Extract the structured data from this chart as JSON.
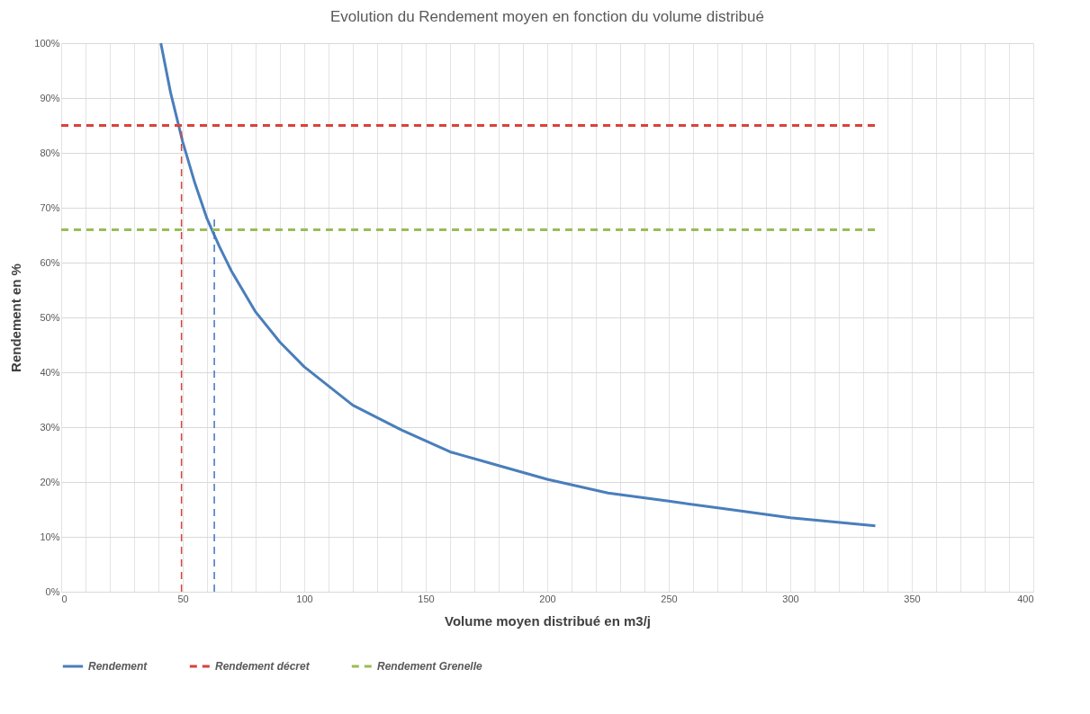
{
  "chart_data": {
    "type": "line",
    "title": "Evolution du Rendement moyen en fonction du volume distribué",
    "xlabel": "Volume moyen distribué en m3/j",
    "ylabel": "Rendement en %",
    "xlim": [
      0,
      400
    ],
    "ylim": [
      0,
      100
    ],
    "xticks": [
      0,
      {
        "value": 10,
        "label": null
      },
      {
        "value": 20,
        "label": null
      },
      {
        "value": 30,
        "label": null
      },
      {
        "value": 40,
        "label": null
      },
      50,
      {
        "value": 60,
        "label": null
      },
      {
        "value": 70,
        "label": null
      },
      {
        "value": 80,
        "label": null
      },
      {
        "value": 90,
        "label": null
      },
      100,
      {
        "value": 110,
        "label": null
      },
      {
        "value": 120,
        "label": null
      },
      {
        "value": 130,
        "label": null
      },
      {
        "value": 140,
        "label": null
      },
      150,
      {
        "value": 160,
        "label": null
      },
      {
        "value": 170,
        "label": null
      },
      {
        "value": 180,
        "label": null
      },
      {
        "value": 190,
        "label": null
      },
      200,
      {
        "value": 210,
        "label": null
      },
      {
        "value": 220,
        "label": null
      },
      {
        "value": 230,
        "label": null
      },
      {
        "value": 240,
        "label": null
      },
      250,
      {
        "value": 260,
        "label": null
      },
      {
        "value": 270,
        "label": null
      },
      {
        "value": 280,
        "label": null
      },
      {
        "value": 290,
        "label": null
      },
      300,
      {
        "value": 310,
        "label": null
      },
      {
        "value": 320,
        "label": null
      },
      {
        "value": 330,
        "label": null
      },
      {
        "value": 340,
        "label": null
      },
      350,
      {
        "value": 360,
        "label": null
      },
      {
        "value": 370,
        "label": null
      },
      {
        "value": 380,
        "label": null
      },
      {
        "value": 390,
        "label": null
      },
      400
    ],
    "yticks": [
      {
        "value": 0,
        "label": "0%"
      },
      {
        "value": 10,
        "label": "10%"
      },
      {
        "value": 20,
        "label": "20%"
      },
      {
        "value": 30,
        "label": "30%"
      },
      {
        "value": 40,
        "label": "40%"
      },
      {
        "value": 50,
        "label": "50%"
      },
      {
        "value": 60,
        "label": "60%"
      },
      {
        "value": 70,
        "label": "70%"
      },
      {
        "value": 80,
        "label": "80%"
      },
      {
        "value": 90,
        "label": "90%"
      },
      {
        "value": 100,
        "label": "100%"
      }
    ],
    "grid": true,
    "legend": "bottom",
    "marker": "none",
    "series": [
      {
        "name": "Rendement",
        "color": "#4a7ebb",
        "line_style": "solid",
        "x": [
          41,
          45,
          50,
          55,
          60,
          65,
          70,
          80,
          90,
          100,
          120,
          140,
          160,
          180,
          200,
          225,
          250,
          275,
          300,
          335
        ],
        "values": [
          100,
          91,
          82,
          74.5,
          68,
          63,
          58.5,
          51,
          45.5,
          41,
          34,
          29.5,
          25.5,
          23,
          20.5,
          18,
          16.5,
          15,
          13.5,
          12
        ]
      },
      {
        "name": "Rendement décret",
        "color": "#d9423a",
        "line_style": "dashed",
        "x": [
          0,
          335
        ],
        "values": [
          85,
          85
        ]
      },
      {
        "name": "Rendement Grenelle",
        "color": "#9bbb59",
        "line_style": "dashed",
        "x": [
          0,
          335
        ],
        "values": [
          66,
          66
        ]
      },
      {
        "color": "#d9423a",
        "line_style": "dashed",
        "x": [
          49.5,
          49.5
        ],
        "values": [
          0,
          85
        ]
      },
      {
        "color": "#4472c4",
        "line_style": "dashed",
        "x": [
          63,
          63
        ],
        "values": [
          0,
          68
        ]
      }
    ]
  }
}
